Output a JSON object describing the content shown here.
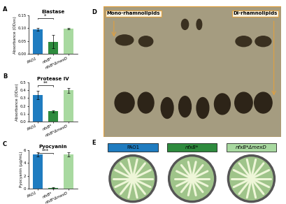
{
  "chart_data": [
    {
      "type": "bar",
      "panel": "A",
      "title": "Elastase",
      "y_label": "Absorbance (OD₄₉₅)",
      "categories": [
        "PAO1",
        "nfxB*",
        "nfxB*ΔmexD"
      ],
      "values": [
        0.095,
        0.048,
        0.098
      ],
      "errors": [
        0.005,
        0.025,
        0.003
      ],
      "colors": [
        "#1f7cc0",
        "#2e8b3e",
        "#a8d9a0"
      ],
      "significance": "*",
      "ylim": [
        0.0,
        0.15
      ],
      "yticks": [
        {
          "value": 0.0,
          "label": "0.00"
        },
        {
          "value": 0.05,
          "label": "0.05"
        },
        {
          "value": 0.1,
          "label": "0.10"
        },
        {
          "value": 0.15,
          "label": "0.15"
        }
      ]
    },
    {
      "type": "bar",
      "panel": "B",
      "title": "Protease IV",
      "y_label": "Absorbance (OD₄₄₀)",
      "categories": [
        "PAO1",
        "nfxB*",
        "nfxB*ΔmexD"
      ],
      "values": [
        0.34,
        0.13,
        0.4
      ],
      "errors": [
        0.05,
        0.015,
        0.03
      ],
      "colors": [
        "#1f7cc0",
        "#2e8b3e",
        "#a8d9a0"
      ],
      "significance": "**",
      "ylim": [
        0.0,
        0.5
      ],
      "yticks": [
        0.0,
        0.1,
        0.2,
        0.3,
        0.4,
        0.5
      ]
    },
    {
      "type": "bar",
      "panel": "C",
      "title": "Pyocyanin",
      "y_label": "Pyocyanin (µg/mL)",
      "categories": [
        "PAO1",
        "nfxB*",
        "nfxB*ΔmexD"
      ],
      "values": [
        5.3,
        0.15,
        5.3
      ],
      "errors": [
        0.3,
        0.1,
        0.3
      ],
      "colors": [
        "#1f7cc0",
        "#2e8b3e",
        "#a8d9a0"
      ],
      "significance": "***",
      "ylim": [
        0,
        6
      ],
      "yticks": [
        0,
        2,
        4,
        6
      ]
    }
  ],
  "panel_D": {
    "panel": "D",
    "annotations": [
      "Mono-rhamnolipids",
      "Di-rhamnolipids"
    ]
  },
  "panel_E": {
    "panel": "E",
    "strains": [
      {
        "name": "PAO1",
        "color": "#1f7cc0"
      },
      {
        "name": "nfxB*",
        "color": "#2e8b3e"
      },
      {
        "name": "nfxB*ΔmexD",
        "color": "#a8d9a0"
      }
    ]
  }
}
